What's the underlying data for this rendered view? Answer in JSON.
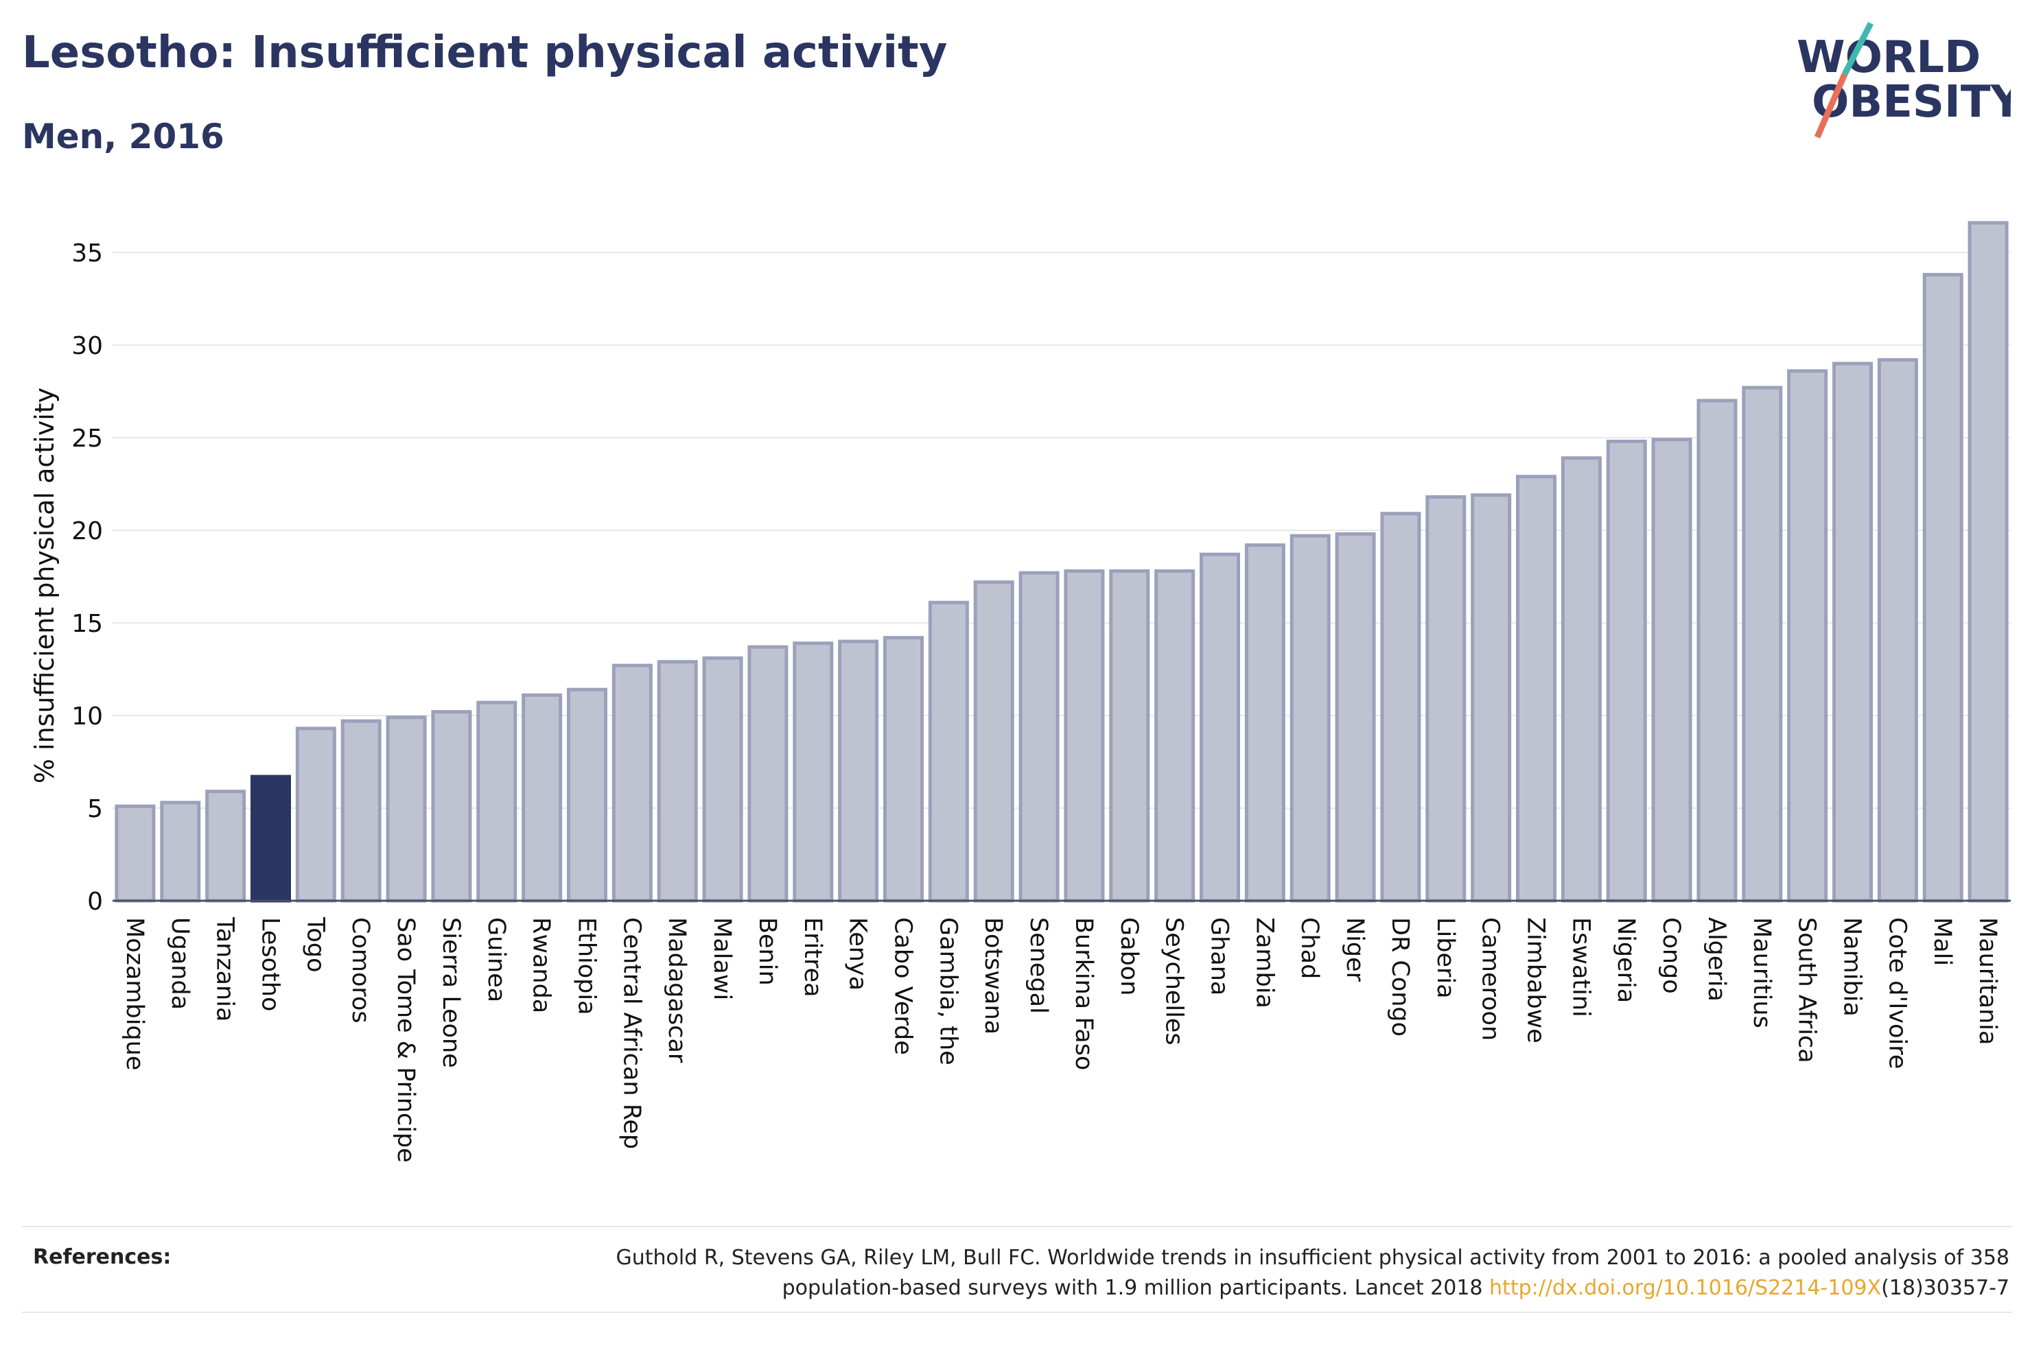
{
  "header": {
    "title": "Lesotho: Insufficient physical activity",
    "subtitle": "Men, 2016"
  },
  "logo": {
    "line1": "WORLD",
    "line2": "OBESITY"
  },
  "colors": {
    "bar": "#bfc3d1",
    "bar_edge": "#9ba1bb",
    "highlight": "#2b3561",
    "grid": "#e8e8ec",
    "axis_text": "#111111",
    "link": "#e8a72b"
  },
  "chart_data": {
    "type": "bar",
    "ylabel": "% insufficient physical activity",
    "ylim": [
      0,
      37
    ],
    "yticks": [
      0,
      5,
      10,
      15,
      20,
      25,
      30,
      35
    ],
    "grid": true,
    "highlight": "Lesotho",
    "categories": [
      "Mozambique",
      "Uganda",
      "Tanzania",
      "Lesotho",
      "Togo",
      "Comoros",
      "Sao Tome & Principe",
      "Sierra Leone",
      "Guinea",
      "Rwanda",
      "Ethiopia",
      "Central African Rep",
      "Madagascar",
      "Malawi",
      "Benin",
      "Eritrea",
      "Kenya",
      "Cabo Verde",
      "Gambia, the",
      "Botswana",
      "Senegal",
      "Burkina Faso",
      "Gabon",
      "Seychelles",
      "Ghana",
      "Zambia",
      "Chad",
      "Niger",
      "DR Congo",
      "Liberia",
      "Cameroon",
      "Zimbabwe",
      "Eswatini",
      "Nigeria",
      "Congo",
      "Algeria",
      "Mauritius",
      "South Africa",
      "Namibia",
      "Cote d'Ivoire",
      "Mali",
      "Mauritania"
    ],
    "values": [
      5.1,
      5.3,
      5.9,
      6.7,
      9.3,
      9.7,
      9.9,
      10.2,
      10.7,
      11.1,
      11.4,
      12.7,
      12.9,
      13.1,
      13.7,
      13.9,
      14.0,
      14.2,
      16.1,
      17.2,
      17.7,
      17.8,
      17.8,
      17.8,
      18.7,
      19.2,
      19.7,
      19.8,
      20.9,
      21.8,
      21.9,
      22.9,
      23.9,
      24.8,
      24.9,
      27.0,
      27.7,
      28.6,
      29.0,
      29.2,
      33.8,
      36.6
    ]
  },
  "references": {
    "label": "References:",
    "text_line1": "Guthold R, Stevens GA, Riley LM, Bull FC. Worldwide trends in insufficient physical activity from 2001 to 2016: a pooled analysis of 358",
    "text_line2_prefix": "population-based surveys with 1.9 million participants. Lancet 2018 ",
    "link": "http://dx.doi.org/10.1016/S2214-109X",
    "text_line2_suffix": "(18)30357-7"
  }
}
